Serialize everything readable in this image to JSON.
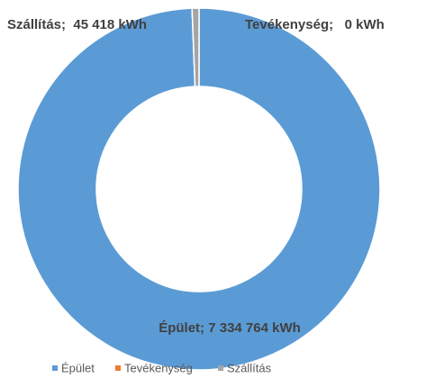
{
  "chart_data": {
    "type": "donut",
    "categories": [
      "Épület",
      "Tevékenység",
      "Szállítás"
    ],
    "values": [
      7334764,
      0,
      45418
    ],
    "value_labels": [
      "Épület; 7 334 764 kWh",
      "Tevékenység;   0 kWh",
      "Szállítás;  45 418 kWh"
    ],
    "colors": [
      "#5b9bd5",
      "#ed7d31",
      "#a5a5a5"
    ],
    "legend": "bottom"
  }
}
